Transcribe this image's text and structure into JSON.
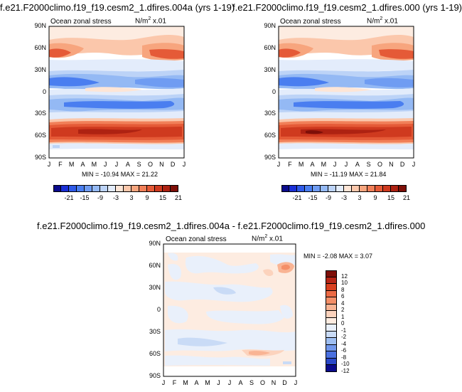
{
  "panels": [
    {
      "id": "exp",
      "title": "f.e21.F2000climo.f19_f19.cesm2_1.dfires.004a (yrs 1-19)",
      "subtitle_left": "Ocean zonal stress",
      "units": "N/m",
      "units_exp": "2",
      "units_scale": "x.01",
      "stats": "MIN = -10.94 MAX =  21.22"
    },
    {
      "id": "ctl",
      "title": "f.e21.F2000climo.f19_f19.cesm2_1.dfires.000 (yrs 1-19)",
      "subtitle_left": "Ocean zonal stress",
      "units": "N/m",
      "units_exp": "2",
      "units_scale": "x.01",
      "stats": "MIN = -11.19 MAX =  21.84"
    },
    {
      "id": "diff",
      "title": "f.e21.F2000climo.f19_f19.cesm2_1.dfires.004a - f.e21.F2000climo.f19_f19.cesm2_1.dfires.000",
      "subtitle_left": "Ocean zonal stress",
      "units": "N/m",
      "units_exp": "2",
      "units_scale": "x.01",
      "stats": "MIN = -2.08 MAX =  3.07"
    }
  ],
  "chart_data": [
    {
      "type": "heatmap",
      "title": "f.e21.F2000climo.f19_f19.cesm2_1.dfires.004a (yrs 1-19)",
      "x": [
        "J",
        "F",
        "M",
        "A",
        "M",
        "J",
        "J",
        "A",
        "S",
        "O",
        "N",
        "D",
        "J"
      ],
      "y_ticks": [
        "90N",
        "60N",
        "30N",
        "0",
        "30S",
        "60S",
        "90S"
      ],
      "zonal_profile": [
        {
          "lat": 60,
          "value": 12
        },
        {
          "lat": 45,
          "value": 3
        },
        {
          "lat": 30,
          "value": 1
        },
        {
          "lat": 15,
          "value": -7
        },
        {
          "lat": 0,
          "value": 2
        },
        {
          "lat": -15,
          "value": -8
        },
        {
          "lat": -30,
          "value": -2
        },
        {
          "lat": -45,
          "value": 10
        },
        {
          "lat": -55,
          "value": 21
        },
        {
          "lat": -65,
          "value": 4
        }
      ],
      "min": -10.94,
      "max": 21.22
    },
    {
      "type": "heatmap",
      "title": "f.e21.F2000climo.f19_f19.cesm2_1.dfires.000 (yrs 1-19)",
      "x": [
        "J",
        "F",
        "M",
        "A",
        "M",
        "J",
        "J",
        "A",
        "S",
        "O",
        "N",
        "D",
        "J"
      ],
      "y_ticks": [
        "90N",
        "60N",
        "30N",
        "0",
        "30S",
        "60S",
        "90S"
      ],
      "zonal_profile": [
        {
          "lat": 60,
          "value": 12
        },
        {
          "lat": 45,
          "value": 3
        },
        {
          "lat": 30,
          "value": 1
        },
        {
          "lat": 15,
          "value": -7
        },
        {
          "lat": 0,
          "value": 2
        },
        {
          "lat": -15,
          "value": -8
        },
        {
          "lat": -30,
          "value": -2
        },
        {
          "lat": -45,
          "value": 10
        },
        {
          "lat": -55,
          "value": 21
        },
        {
          "lat": -65,
          "value": 4
        }
      ],
      "min": -11.19,
      "max": 21.84
    },
    {
      "type": "heatmap",
      "title": "f.e21.F2000climo.f19_f19.cesm2_1.dfires.004a - f.e21.F2000climo.f19_f19.cesm2_1.dfires.000",
      "x": [
        "J",
        "F",
        "M",
        "A",
        "M",
        "J",
        "J",
        "A",
        "S",
        "O",
        "N",
        "D",
        "J"
      ],
      "y_ticks": [
        "90N",
        "60N",
        "30N",
        "0",
        "30S",
        "60S",
        "90S"
      ],
      "min": -2.08,
      "max": 3.07
    }
  ],
  "colorbar_top": {
    "labels": [
      "-21",
      "-15",
      "-9",
      "-3",
      "3",
      "9",
      "15",
      "21"
    ],
    "colors": [
      "#0b0b8c",
      "#1a2fd6",
      "#2f5ae8",
      "#4a7ef0",
      "#6f9cf2",
      "#94b9f4",
      "#bcd3f7",
      "#e3ecfb",
      "#fde5d6",
      "#fbc7ab",
      "#f7a57e",
      "#f17f58",
      "#e55a37",
      "#cf3a1f",
      "#ae2212",
      "#7e0f08"
    ]
  },
  "colorbar_diff": {
    "labels": [
      "12",
      "10",
      "8",
      "6",
      "4",
      "2",
      "1",
      "0",
      "-1",
      "-2",
      "-4",
      "-6",
      "-8",
      "-10",
      "-12"
    ],
    "colors": [
      "#7e0f08",
      "#b72516",
      "#d9401f",
      "#ec6a44",
      "#f48f68",
      "#f9b494",
      "#fcd3bd",
      "#fdece1",
      "#e9f0fb",
      "#c9dbf6",
      "#9fbff2",
      "#7298ec",
      "#4a70e0",
      "#2a48c9",
      "#0b0b8c"
    ]
  },
  "colors": {
    "neg_strong": "#2f5ae8",
    "neg_mid": "#6f9cf2",
    "neg_light": "#bcd3f7",
    "pos_light": "#fde5d6",
    "pos_mid": "#f7a57e",
    "pos_strong": "#e55a37",
    "pos_dark": "#ae2212",
    "max_red": "#7e0f08"
  }
}
